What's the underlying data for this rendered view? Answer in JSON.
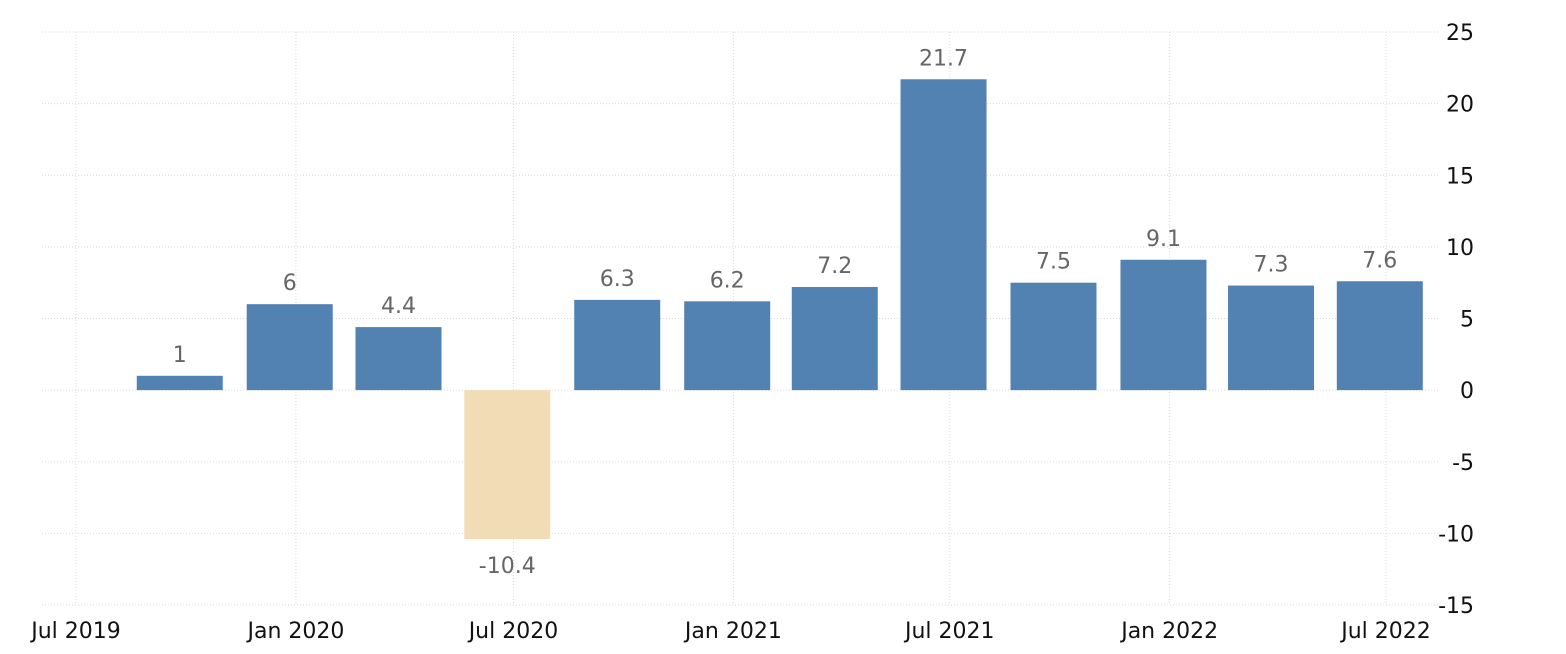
{
  "chart_data": {
    "type": "bar",
    "categories": [
      "Q3 2019",
      "Q4 2019",
      "Q1 2020",
      "Q2 2020",
      "Q3 2020",
      "Q4 2020",
      "Q1 2021",
      "Q2 2021",
      "Q3 2021",
      "Q4 2021",
      "Q1 2022",
      "Q2 2022"
    ],
    "x": [
      "2019-09-30",
      "2019-12-31",
      "2020-03-31",
      "2020-06-30",
      "2020-09-30",
      "2020-12-31",
      "2021-03-31",
      "2021-06-30",
      "2021-09-30",
      "2021-12-31",
      "2022-03-31",
      "2022-06-30"
    ],
    "values": [
      1,
      6,
      4.4,
      -10.4,
      6.3,
      6.2,
      7.2,
      21.7,
      7.5,
      9.1,
      7.3,
      7.6
    ],
    "data_labels": [
      "1",
      "6",
      "4.4",
      "-10.4",
      "6.3",
      "6.2",
      "7.2",
      "21.7",
      "7.5",
      "9.1",
      "7.3",
      "7.6"
    ],
    "ylim": [
      -15,
      25
    ],
    "y_ticks": [
      25,
      20,
      15,
      10,
      5,
      0,
      -5,
      -10,
      -15
    ],
    "y_axis_side": "right",
    "x_ticks": [
      {
        "date": "2019-07-01",
        "label": "Jul 2019"
      },
      {
        "date": "2020-01-01",
        "label": "Jan 2020"
      },
      {
        "date": "2020-07-01",
        "label": "Jul 2020"
      },
      {
        "date": "2021-01-01",
        "label": "Jan 2021"
      },
      {
        "date": "2021-07-01",
        "label": "Jul 2021"
      },
      {
        "date": "2022-01-01",
        "label": "Jan 2022"
      },
      {
        "date": "2022-07-01",
        "label": "Jul 2022"
      }
    ],
    "title": "",
    "xlabel": "",
    "ylabel": "",
    "grid": true,
    "legend": "none",
    "colors": {
      "positive": "#5282b2",
      "negative": "#f2dcb6",
      "grid": "#d9d9d9",
      "label": "#666666",
      "tick": "#111111"
    }
  }
}
